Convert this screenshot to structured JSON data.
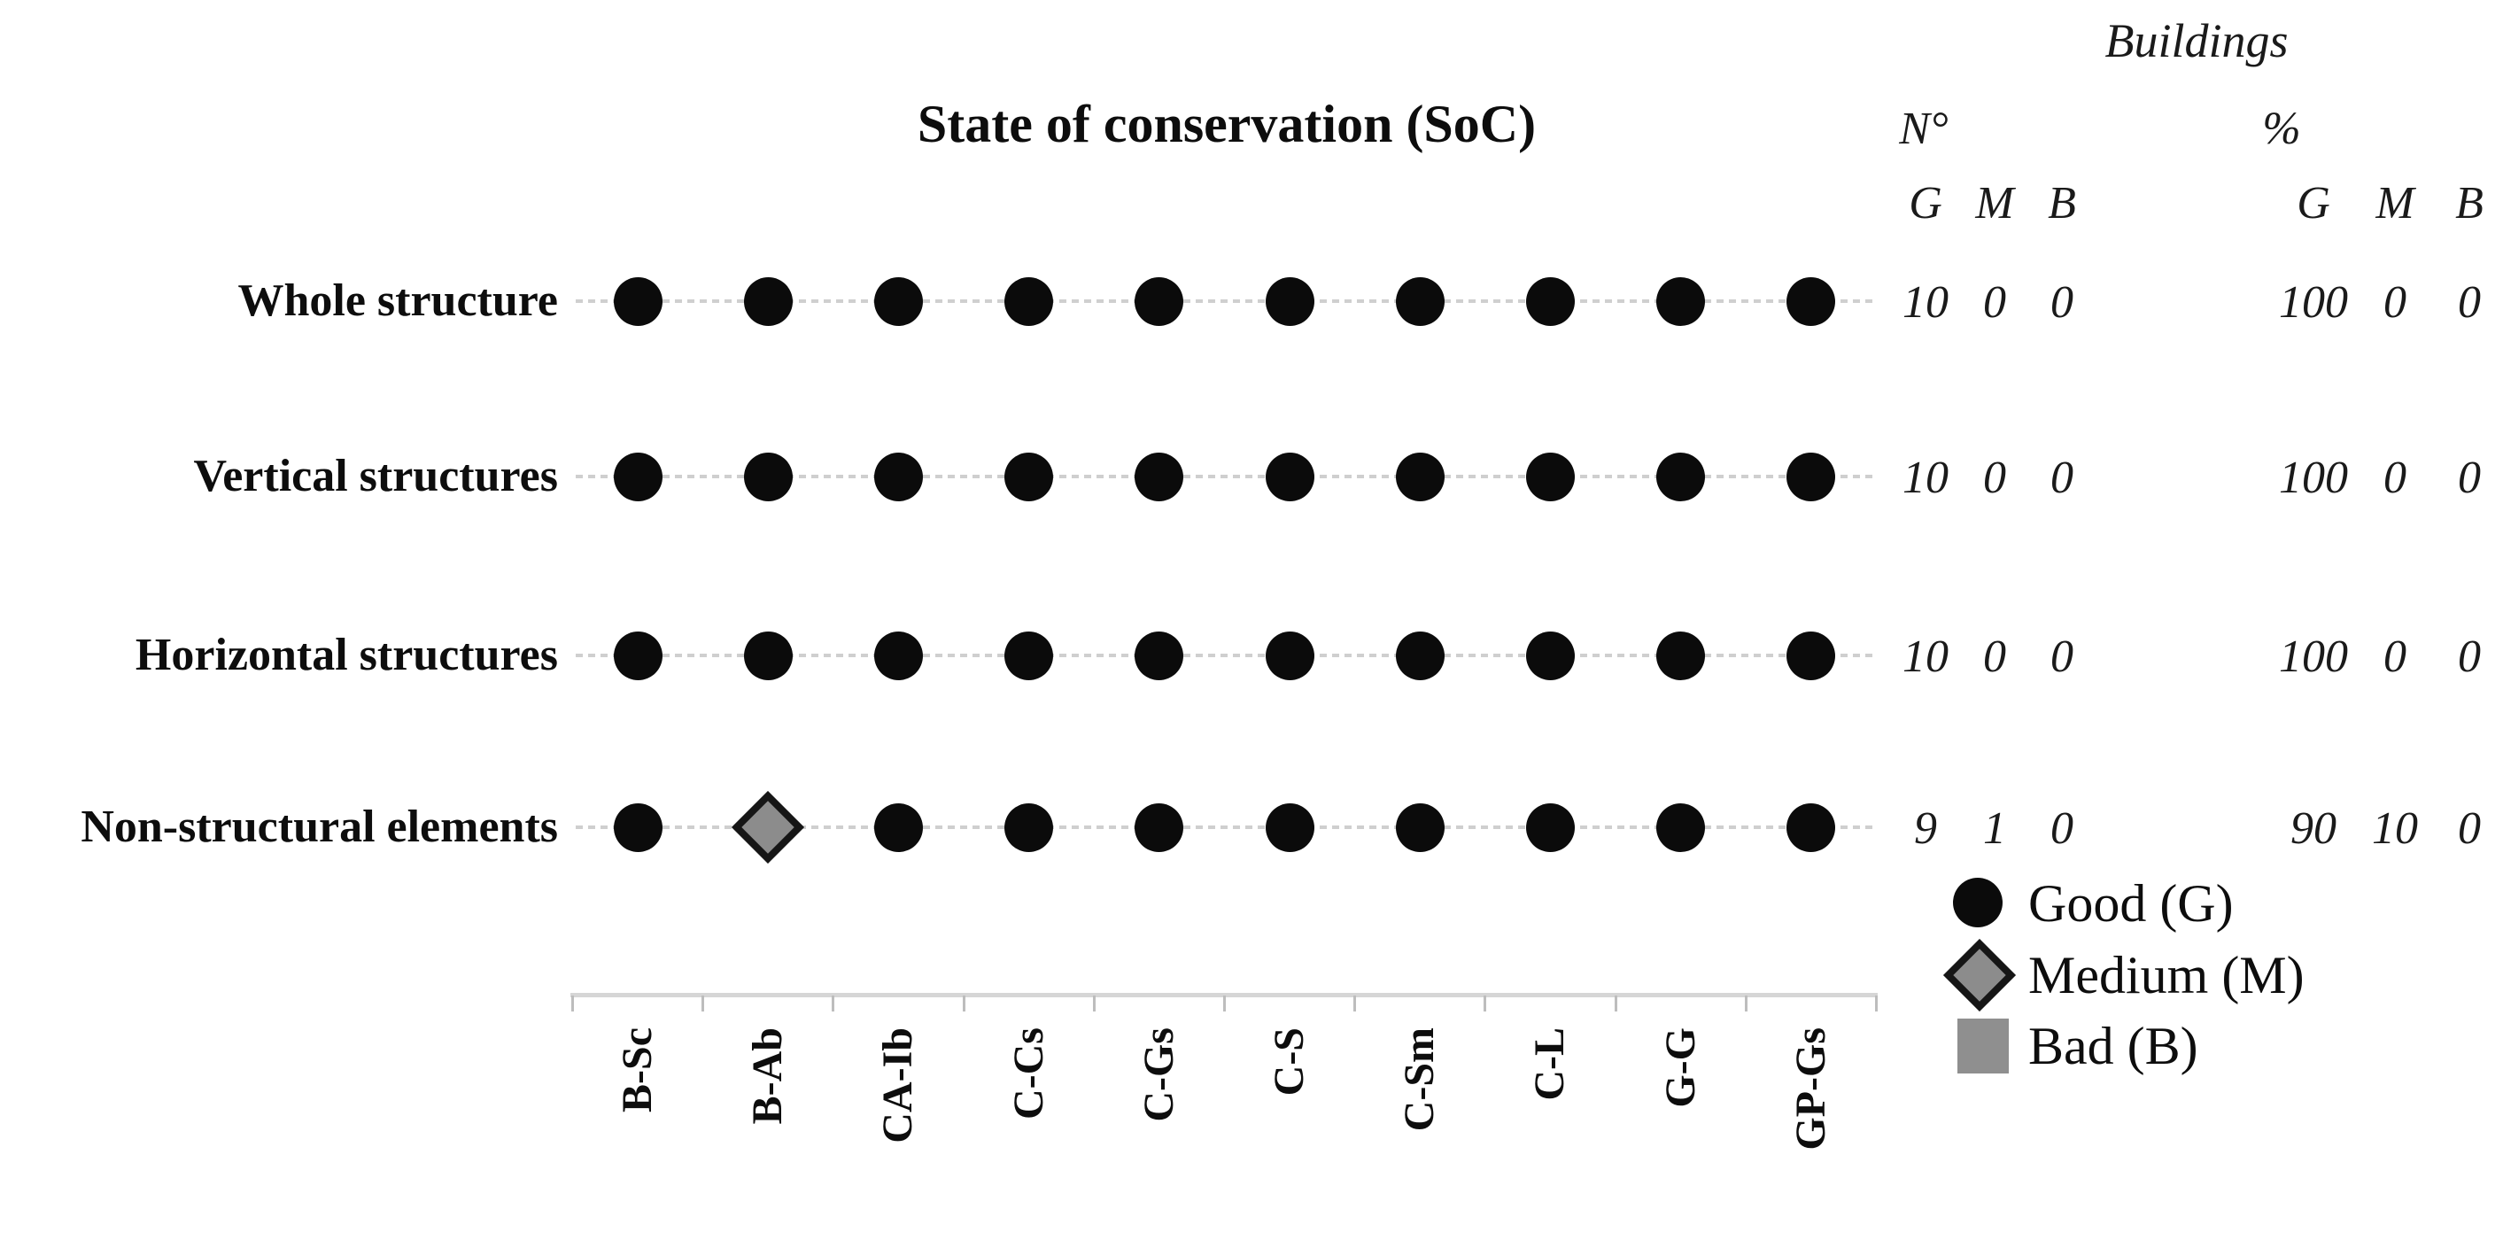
{
  "title": "State of conservation (SoC)",
  "header": {
    "buildings_label": "Buildings",
    "count_label": "N°",
    "percent_label": "%",
    "sub_columns": [
      "G",
      "M",
      "B"
    ]
  },
  "legend": {
    "items": [
      {
        "shape": "circle",
        "label": "Good (G)"
      },
      {
        "shape": "diamond",
        "label": "Medium (M)"
      },
      {
        "shape": "square",
        "label": "Bad (B)"
      }
    ]
  },
  "colors": {
    "good_marker": "#0b0b0b",
    "medium_fill": "#8c8c8c",
    "medium_border": "#161616",
    "bad_fill": "#8f8f8f",
    "row_line": "#cfcfcf",
    "axis_line": "#d6d6d6",
    "tick": "#bdbdbd",
    "text": "#111111"
  },
  "chart_data": {
    "type": "scatter",
    "title": "State of conservation (SoC)",
    "categories": [
      "B-Sc",
      "B-Ab",
      "CA-Ib",
      "C-Cs",
      "C-Gs",
      "C-S",
      "C-Sm",
      "C-L",
      "G-G",
      "GP-Gs"
    ],
    "rows": [
      {
        "label": "Whole structure",
        "states": [
          "G",
          "G",
          "G",
          "G",
          "G",
          "G",
          "G",
          "G",
          "G",
          "G"
        ],
        "n": {
          "G": "10",
          "M": "0",
          "B": "0"
        },
        "pct": {
          "G": "100",
          "M": "0",
          "B": "0"
        }
      },
      {
        "label": "Vertical structures",
        "states": [
          "G",
          "G",
          "G",
          "G",
          "G",
          "G",
          "G",
          "G",
          "G",
          "G"
        ],
        "n": {
          "G": "10",
          "M": "0",
          "B": "0"
        },
        "pct": {
          "G": "100",
          "M": "0",
          "B": "0"
        }
      },
      {
        "label": "Horizontal structures",
        "states": [
          "G",
          "G",
          "G",
          "G",
          "G",
          "G",
          "G",
          "G",
          "G",
          "G"
        ],
        "n": {
          "G": "10",
          "M": "0",
          "B": "0"
        },
        "pct": {
          "G": "100",
          "M": "0",
          "B": "0"
        }
      },
      {
        "label": "Non-structural elements",
        "states": [
          "G",
          "M",
          "G",
          "G",
          "G",
          "G",
          "G",
          "G",
          "G",
          "G"
        ],
        "n": {
          "G": "9",
          "M": "1",
          "B": "0"
        },
        "pct": {
          "G": "90",
          "M": "10",
          "B": "0"
        }
      }
    ],
    "state_legend": {
      "G": "Good (G)",
      "M": "Medium (M)",
      "B": "Bad (B)"
    },
    "legend_position": "bottom-right",
    "grid": false
  }
}
